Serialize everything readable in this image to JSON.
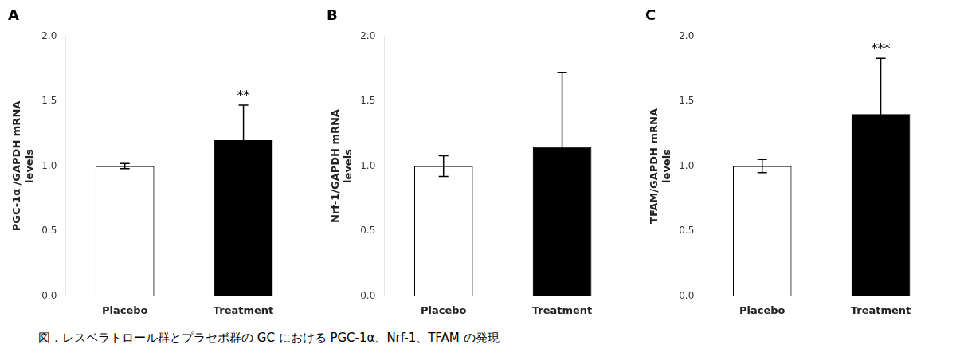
{
  "chart_data": [
    {
      "type": "bar",
      "title": "A",
      "ylabel": "PGC-1α /GAPDH mRNA\nlevels",
      "categories": [
        "Placebo",
        "Treatment"
      ],
      "values": [
        1.0,
        1.2
      ],
      "errors": [
        0.02,
        0.27
      ],
      "colors": [
        "white",
        "black"
      ],
      "annotations": [
        {
          "category": "Treatment",
          "text": "**"
        }
      ],
      "ylim": [
        0,
        2.0
      ],
      "yticks": [
        {
          "value": 0.0,
          "label": "0.0"
        },
        {
          "value": 0.5,
          "label": "0.5"
        },
        {
          "value": 1.0,
          "label": "1.0"
        },
        {
          "value": 1.5,
          "label": "1.5"
        },
        {
          "value": 2.0,
          "label": "2.0"
        }
      ],
      "grid": false
    },
    {
      "type": "bar",
      "title": "B",
      "ylabel": "Nrf-1/GAPDH mRNA\nlevels",
      "categories": [
        "Placebo",
        "Treatment"
      ],
      "values": [
        1.0,
        1.15
      ],
      "errors": [
        0.08,
        0.57
      ],
      "colors": [
        "white",
        "black"
      ],
      "ylim": [
        0,
        2.0
      ],
      "yticks": [
        {
          "value": 0.0,
          "label": "0.0"
        },
        {
          "value": 0.5,
          "label": "0.5"
        },
        {
          "value": 1.0,
          "label": "1.0"
        },
        {
          "value": 1.5,
          "label": "1.5"
        },
        {
          "value": 2.0,
          "label": "2.0"
        }
      ],
      "grid": false
    },
    {
      "type": "bar",
      "title": "C",
      "ylabel": "TFAM/GAPDH mRNA\nlevels",
      "categories": [
        "Placebo",
        "Treatment"
      ],
      "values": [
        1.0,
        1.4
      ],
      "errors": [
        0.05,
        0.43
      ],
      "colors": [
        "white",
        "black"
      ],
      "annotations": [
        {
          "category": "Treatment",
          "text": "***"
        }
      ],
      "ylim": [
        0,
        2.0
      ],
      "yticks": [
        {
          "value": 0.0,
          "label": "0.0"
        },
        {
          "value": 0.5,
          "label": "0.5"
        },
        {
          "value": 1.0,
          "label": "1.0"
        },
        {
          "value": 1.5,
          "label": "1.5"
        },
        {
          "value": 2.0,
          "label": "2.0"
        }
      ],
      "grid": false
    }
  ],
  "caption": "図．レスベラトロール群とプラセボ群の GC における PGC-1α、Nrf-1、TFAM の発現"
}
